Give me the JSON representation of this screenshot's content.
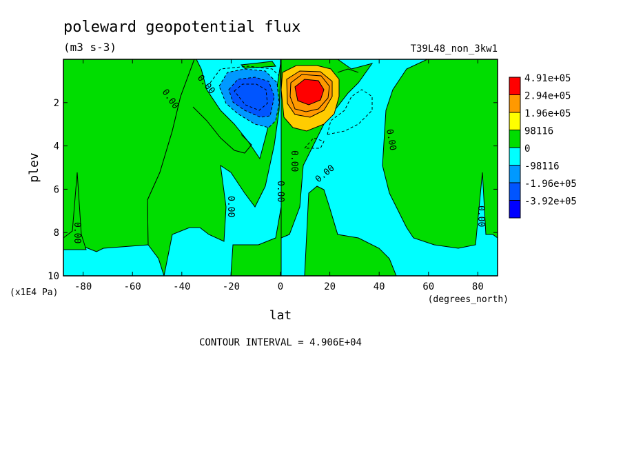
{
  "chart_data": {
    "type": "heatmap",
    "title": "poleward geopotential flux",
    "subtitle": "(m3 s-3)",
    "run_label": "T39L48_non_3kw1",
    "xlabel": "lat",
    "x_units": "(degrees_north)",
    "ylabel": "plev",
    "y_units": "(x1E4 Pa)",
    "xlim": [
      -88,
      88
    ],
    "ylim": [
      10,
      0
    ],
    "x_ticks": [
      -80,
      -60,
      -40,
      -20,
      0,
      20,
      40,
      60,
      80
    ],
    "y_ticks": [
      2,
      4,
      6,
      8,
      10
    ],
    "contour_interval_text": "CONTOUR INTERVAL = 4.906E+04",
    "contour_interval": 49060,
    "legend": {
      "placement": "right",
      "levels": [
        "4.91e+05",
        "2.94e+05",
        "1.96e+05",
        "98116",
        "0",
        "-98116",
        "-1.96e+05",
        "-3.92e+05"
      ],
      "colors": [
        "#ff0000",
        "#ff9900",
        "#ffff00",
        "#00dd00",
        "#00ffff",
        "#0099ff",
        "#0055ff",
        "#0000ff"
      ]
    },
    "band_colors": {
      "positive_low": "#00dd00",
      "negative_low": "#00ffff",
      "positive_mid": "#ffcc00",
      "positive_mid2": "#ff9900",
      "positive_high": "#ff0000",
      "negative_mid": "#0099ff",
      "negative_high": "#0055ff"
    },
    "contour_labels": [
      {
        "text": "0.00",
        "lon": -47,
        "p": 1.8
      },
      {
        "text": "0.00",
        "lon": -30,
        "p": 1.1
      },
      {
        "text": "0.00",
        "lon": 7,
        "p": 4.6
      },
      {
        "text": "0.00",
        "lon": 20,
        "p": 5.5
      },
      {
        "text": "0.00",
        "lon": 0,
        "p": 6.3
      },
      {
        "text": "0.00",
        "lon": 45,
        "p": 3.8
      },
      {
        "text": "0.00",
        "lon": -20,
        "p": 6.9
      },
      {
        "text": "0.00",
        "lon": -83,
        "p": 8.0
      },
      {
        "text": "0.00",
        "lon": 83,
        "p": 7.5
      }
    ],
    "features": [
      {
        "name": "negative-core",
        "lon_center": -11,
        "p_center": 1.8,
        "min_level": -392000
      },
      {
        "name": "positive-core",
        "lon_center": 11,
        "p_center": 1.8,
        "max_level": 491000
      }
    ]
  }
}
